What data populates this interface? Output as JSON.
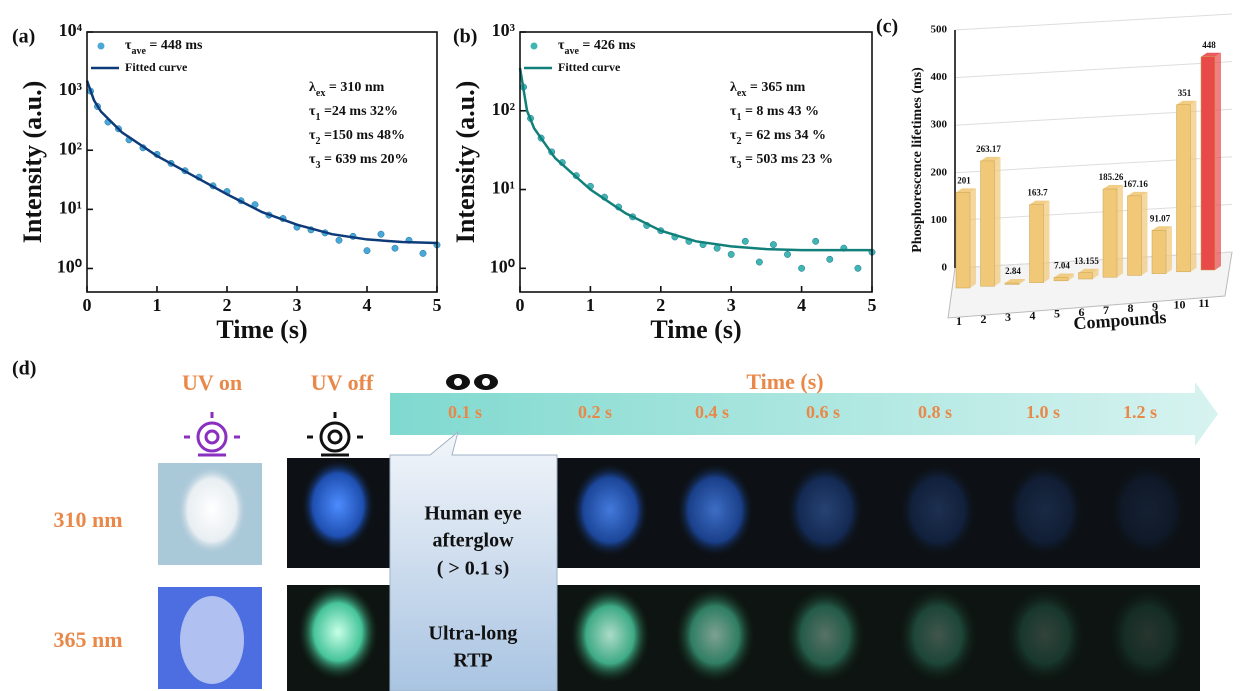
{
  "chart_data": [
    {
      "type": "scatter",
      "label": "(a)",
      "xlabel": "Time (s)",
      "ylabel": "Intensity (a.u.)",
      "xlim": [
        0,
        5
      ],
      "xticks": [
        0,
        1,
        2,
        3,
        4,
        5
      ],
      "ylim": [
        0.4,
        10000
      ],
      "yscale": "log",
      "yticks": [
        {
          "value": 1,
          "label": "10⁰"
        },
        {
          "value": 10,
          "label": "10¹"
        },
        {
          "value": 100,
          "label": "10²"
        },
        {
          "value": 1000,
          "label": "10³"
        },
        {
          "value": 10000,
          "label": "10⁴"
        }
      ],
      "series": [
        {
          "name": [
            {
              "t": "τ"
            },
            {
              "t": "ave",
              "sub": true
            },
            {
              "t": " = 448 ms"
            }
          ],
          "kind": "marker",
          "color": "#4aa8d8",
          "x": [
            0.05,
            0.15,
            0.3,
            0.45,
            0.6,
            0.8,
            1.0,
            1.2,
            1.4,
            1.6,
            1.8,
            2.0,
            2.2,
            2.4,
            2.6,
            2.8,
            3.0,
            3.2,
            3.4,
            3.6,
            3.8,
            4.0,
            4.2,
            4.4,
            4.6,
            4.8,
            5.0
          ],
          "values": [
            1000,
            550,
            300,
            230,
            150,
            110,
            85,
            60,
            45,
            35,
            25,
            20,
            14,
            12,
            8,
            7,
            5,
            4.5,
            4,
            3,
            3.5,
            2,
            3.8,
            2.2,
            3,
            1.8,
            2.5
          ]
        },
        {
          "name": "Fitted curve",
          "kind": "line",
          "color": "#0d3b7a",
          "x": [
            0,
            0.1,
            0.2,
            0.5,
            1,
            1.5,
            2,
            2.5,
            3,
            3.5,
            4,
            4.5,
            5
          ],
          "values": [
            1500,
            700,
            450,
            200,
            80,
            38,
            18,
            9,
            5.5,
            3.8,
            3.1,
            2.8,
            2.7
          ]
        }
      ],
      "annotations": [
        [
          {
            "t": "λ"
          },
          {
            "t": "ex",
            "sub": true
          },
          {
            "t": " = 310 nm"
          }
        ],
        [
          {
            "t": "τ"
          },
          {
            "t": "1",
            "sub": true
          },
          {
            "t": " =24 ms 32%"
          }
        ],
        [
          {
            "t": "τ"
          },
          {
            "t": "2",
            "sub": true
          },
          {
            "t": " =150 ms 48%"
          }
        ],
        [
          {
            "t": "τ"
          },
          {
            "t": "3",
            "sub": true
          },
          {
            "t": " = 639 ms 20%"
          }
        ]
      ]
    },
    {
      "type": "scatter",
      "label": "(b)",
      "xlabel": "Time (s)",
      "ylabel": "Intensity (a.u.)",
      "xlim": [
        0,
        5
      ],
      "xticks": [
        0,
        1,
        2,
        3,
        4,
        5
      ],
      "ylim": [
        0.5,
        1000
      ],
      "yscale": "log",
      "yticks": [
        {
          "value": 1,
          "label": "10⁰"
        },
        {
          "value": 10,
          "label": "10¹"
        },
        {
          "value": 100,
          "label": "10²"
        },
        {
          "value": 1000,
          "label": "10³"
        }
      ],
      "series": [
        {
          "name": [
            {
              "t": "τ"
            },
            {
              "t": "ave",
              "sub": true
            },
            {
              "t": " = 426 ms"
            }
          ],
          "kind": "marker",
          "color": "#3fb6b0",
          "x": [
            0.05,
            0.15,
            0.3,
            0.45,
            0.6,
            0.8,
            1.0,
            1.2,
            1.4,
            1.6,
            1.8,
            2.0,
            2.2,
            2.4,
            2.6,
            2.8,
            3.0,
            3.2,
            3.4,
            3.6,
            3.8,
            4.0,
            4.2,
            4.4,
            4.6,
            4.8,
            5.0
          ],
          "values": [
            200,
            80,
            45,
            30,
            22,
            15,
            11,
            8,
            6,
            4.5,
            3.5,
            3,
            2.5,
            2.2,
            2,
            1.8,
            1.5,
            2.2,
            1.2,
            2,
            1.5,
            1,
            2.2,
            1.3,
            1.8,
            1,
            1.6
          ]
        },
        {
          "name": "Fitted curve",
          "kind": "line",
          "color": "#12807a",
          "x": [
            0,
            0.1,
            0.2,
            0.5,
            1,
            1.5,
            2,
            2.5,
            3,
            3.5,
            4,
            4.5,
            5
          ],
          "values": [
            350,
            100,
            60,
            25,
            10,
            5,
            3,
            2.2,
            1.9,
            1.75,
            1.7,
            1.7,
            1.7
          ]
        }
      ],
      "annotations": [
        [
          {
            "t": "λ"
          },
          {
            "t": "ex",
            "sub": true
          },
          {
            "t": " = 365 nm"
          }
        ],
        [
          {
            "t": "τ"
          },
          {
            "t": "1",
            "sub": true
          },
          {
            "t": " = 8 ms 43 %"
          }
        ],
        [
          {
            "t": "τ"
          },
          {
            "t": "2",
            "sub": true
          },
          {
            "t": " = 62 ms 34 %"
          }
        ],
        [
          {
            "t": "τ"
          },
          {
            "t": "3",
            "sub": true
          },
          {
            "t": " = 503 ms  23 %"
          }
        ]
      ]
    },
    {
      "type": "bar3d",
      "label": "(c)",
      "xlabel": "Compounds",
      "ylabel": "Phosphorescence lifetimes (ms)",
      "categories": [
        "1",
        "2",
        "3",
        "4",
        "5",
        "6",
        "7",
        "8",
        "9",
        "10",
        "11"
      ],
      "values": [
        201,
        263.17,
        2.84,
        163.7,
        7.04,
        13.155,
        185.26,
        167.16,
        91.07,
        351,
        448
      ],
      "colors": [
        "#f0c878",
        "#f0c878",
        "#f0c878",
        "#f0c878",
        "#f0c878",
        "#f0c878",
        "#f0c878",
        "#f0c878",
        "#f0c878",
        "#f0c878",
        "#e84a4a"
      ],
      "ylim": [
        0,
        500
      ],
      "yticks": [
        0,
        100,
        200,
        300,
        400,
        500
      ]
    }
  ],
  "panel_d": {
    "label": "(d)",
    "uv_on": "UV on",
    "uv_off": "UV off",
    "time_title": "Time (s)",
    "times": [
      "0.1 s",
      "0.2 s",
      "0.4 s",
      "0.6 s",
      "0.8 s",
      "1.0 s",
      "1.2 s"
    ],
    "wavelengths": [
      "310 nm",
      "365 nm"
    ],
    "callout": [
      "Human eye",
      "afterglow",
      "( > 0.1 s)",
      "Ultra-long",
      "RTP"
    ]
  }
}
